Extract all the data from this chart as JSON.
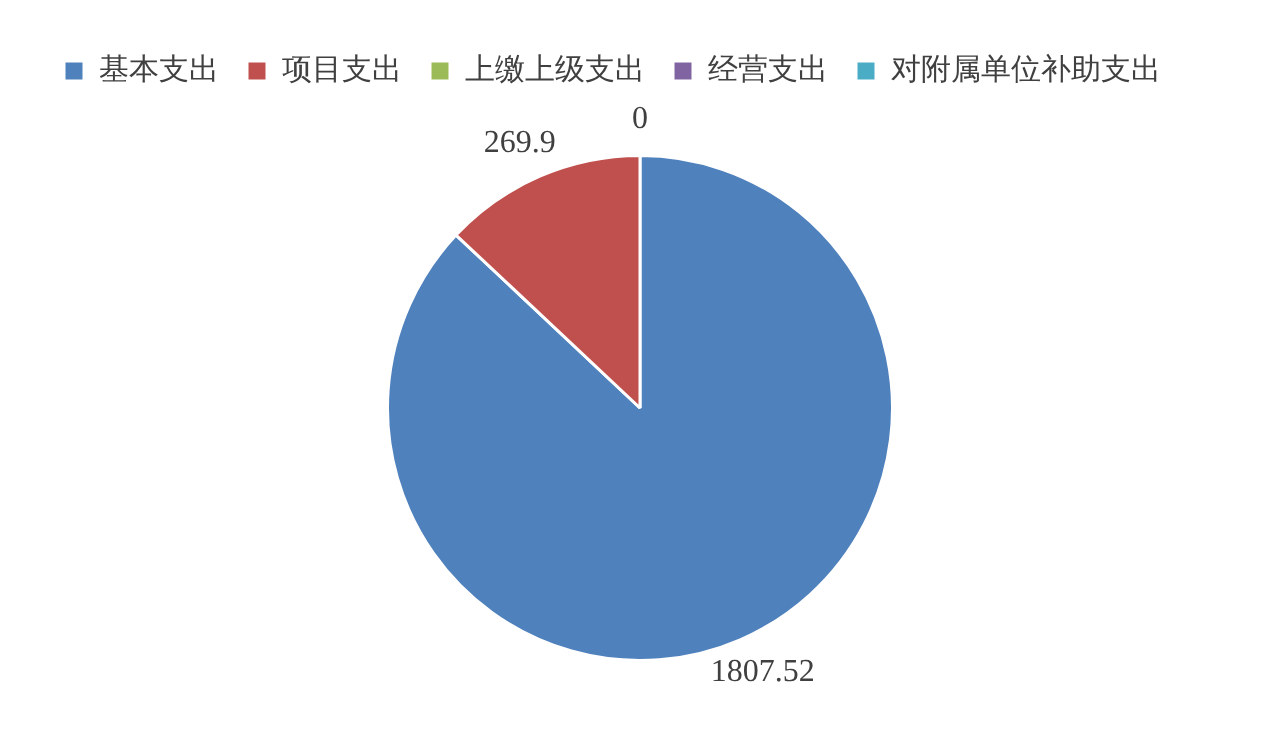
{
  "chart_data": {
    "type": "pie",
    "categories": [
      "基本支出",
      "项目支出",
      "上缴上级支出",
      "经营支出",
      "对附属单位补助支出"
    ],
    "values": [
      1807.52,
      269.9,
      0,
      0,
      0
    ],
    "colors": [
      "#4f81bd",
      "#c0504d",
      "#9bbb59",
      "#8064a2",
      "#4bacc6"
    ],
    "value_labels": [
      "1807.52",
      "269.9",
      "0",
      null,
      null
    ],
    "legend": "top"
  }
}
